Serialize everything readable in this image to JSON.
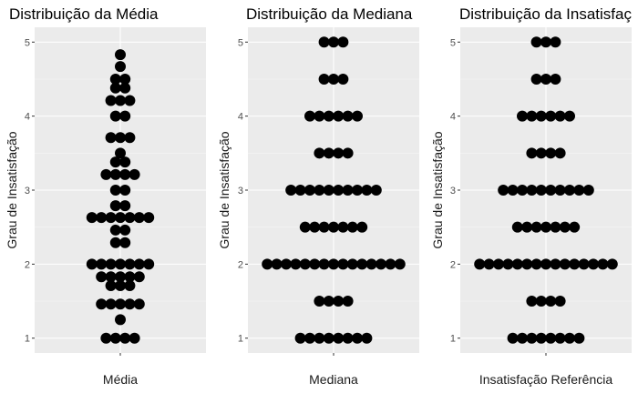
{
  "chart_data": [
    {
      "type": "dotplot",
      "title": "Distribuição da Média",
      "xlabel": "Média",
      "ylabel": "Grau de Insatisfação",
      "ylim": [
        0.8,
        5.2
      ],
      "yticks": [
        1,
        2,
        3,
        4,
        5
      ],
      "grid": true,
      "dot_color": "#000000",
      "points": [
        {
          "y": 4.83,
          "count": 1
        },
        {
          "y": 4.67,
          "count": 1
        },
        {
          "y": 4.5,
          "count": 2
        },
        {
          "y": 4.38,
          "count": 2
        },
        {
          "y": 4.21,
          "count": 3
        },
        {
          "y": 4.0,
          "count": 2
        },
        {
          "y": 3.71,
          "count": 3
        },
        {
          "y": 3.5,
          "count": 1
        },
        {
          "y": 3.38,
          "count": 2
        },
        {
          "y": 3.21,
          "count": 4
        },
        {
          "y": 3.0,
          "count": 2
        },
        {
          "y": 2.79,
          "count": 2
        },
        {
          "y": 2.63,
          "count": 7
        },
        {
          "y": 2.46,
          "count": 2
        },
        {
          "y": 2.29,
          "count": 2
        },
        {
          "y": 2.0,
          "count": 7
        },
        {
          "y": 1.83,
          "count": 5
        },
        {
          "y": 1.71,
          "count": 3
        },
        {
          "y": 1.46,
          "count": 5
        },
        {
          "y": 1.25,
          "count": 1
        },
        {
          "y": 1.0,
          "count": 4
        }
      ]
    },
    {
      "type": "dotplot",
      "title": "Distribuição da Mediana",
      "xlabel": "Mediana",
      "ylabel": "Grau de Insatisfação",
      "ylim": [
        0.8,
        5.2
      ],
      "yticks": [
        1,
        2,
        3,
        4,
        5
      ],
      "grid": true,
      "dot_color": "#000000",
      "points": [
        {
          "y": 5.0,
          "count": 3
        },
        {
          "y": 4.5,
          "count": 3
        },
        {
          "y": 4.0,
          "count": 6
        },
        {
          "y": 3.5,
          "count": 4
        },
        {
          "y": 3.0,
          "count": 10
        },
        {
          "y": 2.5,
          "count": 7
        },
        {
          "y": 2.0,
          "count": 15
        },
        {
          "y": 1.5,
          "count": 4
        },
        {
          "y": 1.0,
          "count": 8
        }
      ]
    },
    {
      "type": "dotplot",
      "title": "Distribuição da Insatisfaç",
      "xlabel": "Insatisfação Referência",
      "ylabel": "Grau de Insatisfação",
      "ylim": [
        0.8,
        5.2
      ],
      "yticks": [
        1,
        2,
        3,
        4,
        5
      ],
      "grid": true,
      "dot_color": "#000000",
      "points": [
        {
          "y": 5.0,
          "count": 3
        },
        {
          "y": 4.5,
          "count": 3
        },
        {
          "y": 4.0,
          "count": 6
        },
        {
          "y": 3.5,
          "count": 4
        },
        {
          "y": 3.0,
          "count": 10
        },
        {
          "y": 2.5,
          "count": 7
        },
        {
          "y": 2.0,
          "count": 15
        },
        {
          "y": 1.5,
          "count": 4
        },
        {
          "y": 1.0,
          "count": 8
        }
      ]
    }
  ]
}
